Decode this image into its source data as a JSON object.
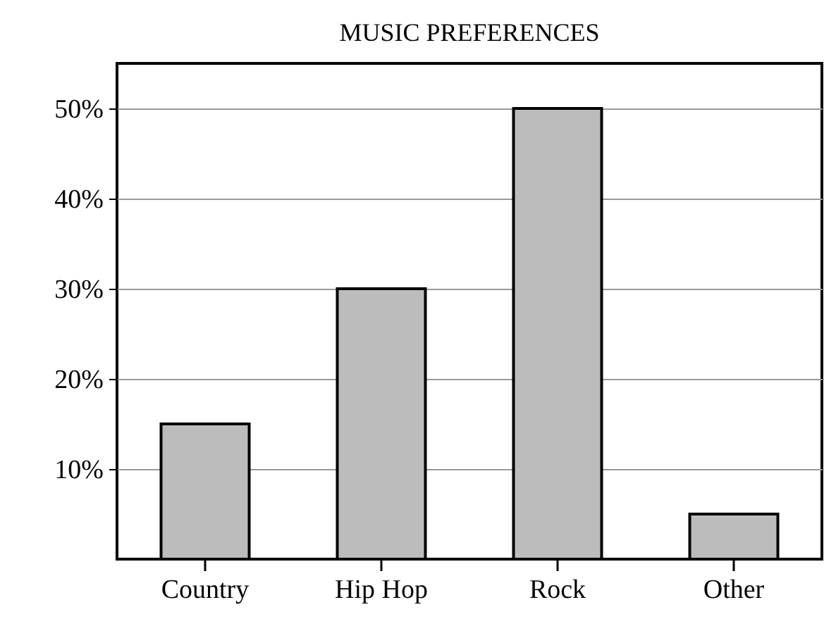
{
  "chart_data": {
    "type": "bar",
    "title": "MUSIC PREFERENCES",
    "categories": [
      "Country",
      "Hip Hop",
      "Rock",
      "Other"
    ],
    "values": [
      15,
      30,
      50,
      5
    ],
    "color": "#bcbcbc",
    "ylim": [
      0,
      55
    ],
    "yticks": [
      {
        "value": 10,
        "label": "10%"
      },
      {
        "value": 20,
        "label": "20%"
      },
      {
        "value": 30,
        "label": "30%"
      },
      {
        "value": 40,
        "label": "40%"
      },
      {
        "value": 50,
        "label": "50%"
      }
    ],
    "grid": "y"
  }
}
